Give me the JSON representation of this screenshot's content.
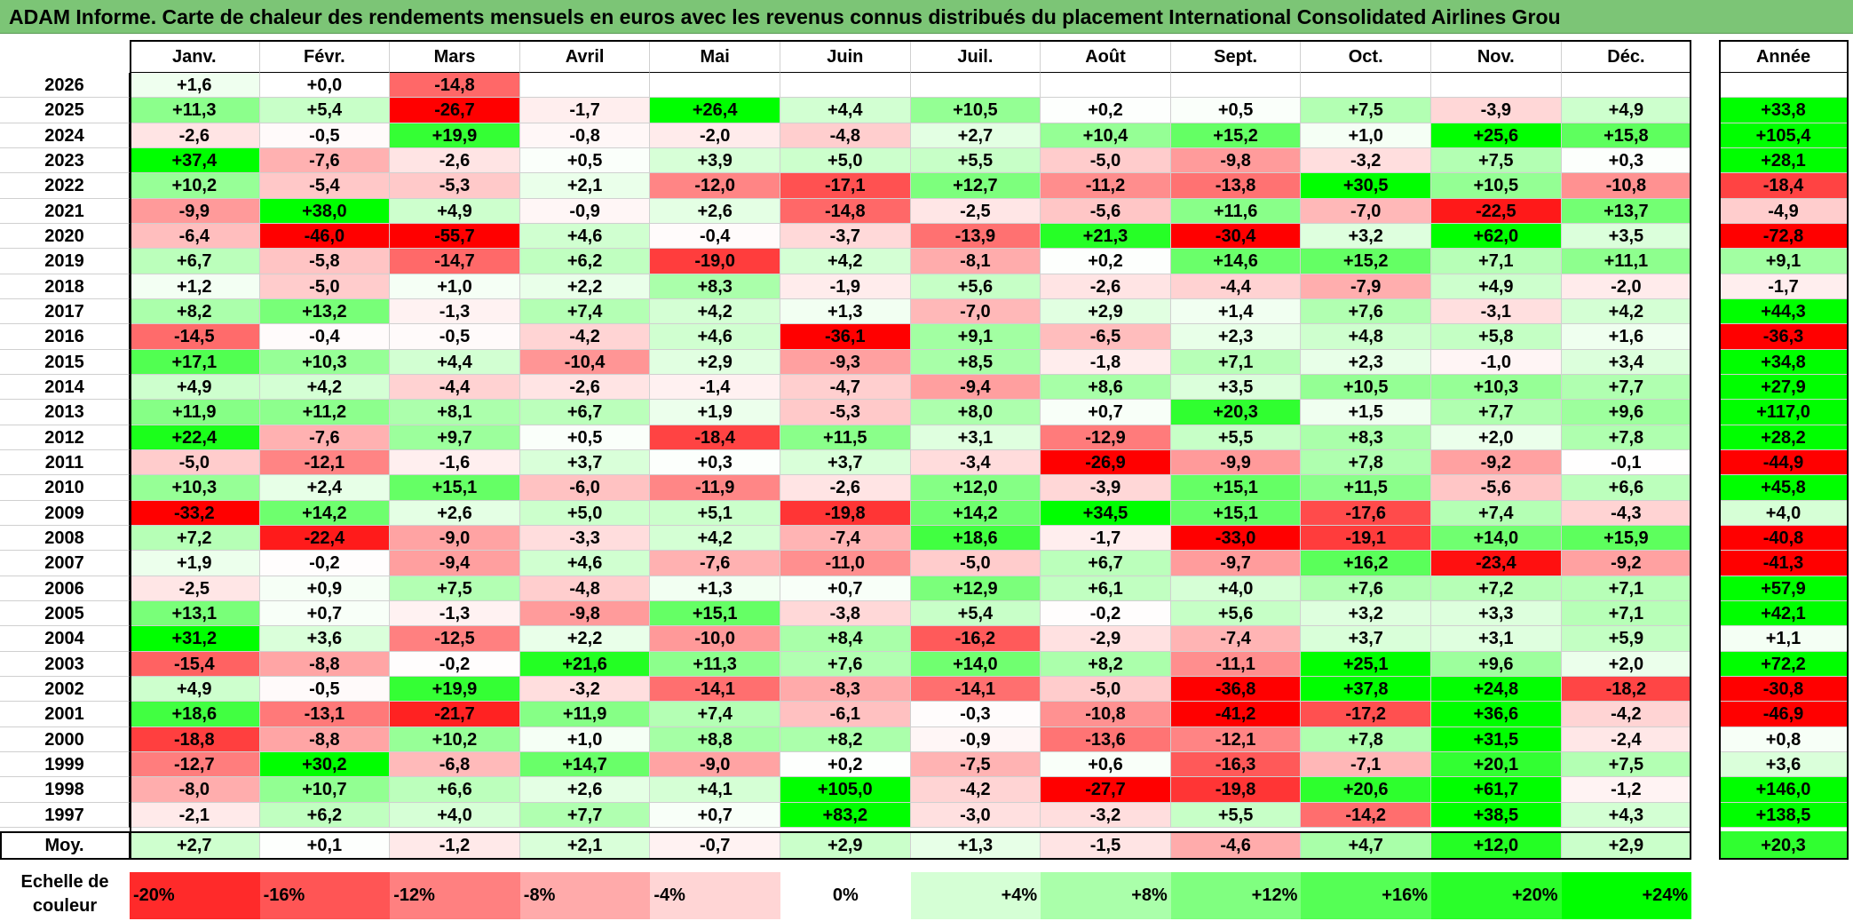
{
  "title": "ADAM Informe. Carte de chaleur des rendements mensuels en euros avec les revenus connus distribués du placement International Consolidated Airlines Grou",
  "colors": {
    "neg_max": "#ff0000",
    "neutral": "#ffffff",
    "pos_max": "#00ff00",
    "title_bg": "#7cc576"
  },
  "chart_data": {
    "type": "heatmap",
    "title": "ADAM Informe. Carte de chaleur des rendements mensuels en euros avec les revenus connus distribués du placement International Consolidated Airlines Grou",
    "columns": [
      "Janv.",
      "Févr.",
      "Mars",
      "Avril",
      "Mai",
      "Juin",
      "Juil.",
      "Août",
      "Sept.",
      "Oct.",
      "Nov.",
      "Déc."
    ],
    "year_header": "Année",
    "rows": [
      {
        "year": "2026",
        "values": [
          "+1,6",
          "+0,0",
          "-14,8",
          "",
          "",
          "",
          "",
          "",
          "",
          "",
          "",
          ""
        ],
        "annual": ""
      },
      {
        "year": "2025",
        "values": [
          "+11,3",
          "+5,4",
          "-26,7",
          "-1,7",
          "+26,4",
          "+4,4",
          "+10,5",
          "+0,2",
          "+0,5",
          "+7,5",
          "-3,9",
          "+4,9"
        ],
        "annual": "+33,8"
      },
      {
        "year": "2024",
        "values": [
          "-2,6",
          "-0,5",
          "+19,9",
          "-0,8",
          "-2,0",
          "-4,8",
          "+2,7",
          "+10,4",
          "+15,2",
          "+1,0",
          "+25,6",
          "+15,8"
        ],
        "annual": "+105,4"
      },
      {
        "year": "2023",
        "values": [
          "+37,4",
          "-7,6",
          "-2,6",
          "+0,5",
          "+3,9",
          "+5,0",
          "+5,5",
          "-5,0",
          "-9,8",
          "-3,2",
          "+7,5",
          "+0,3"
        ],
        "annual": "+28,1"
      },
      {
        "year": "2022",
        "values": [
          "+10,2",
          "-5,4",
          "-5,3",
          "+2,1",
          "-12,0",
          "-17,1",
          "+12,7",
          "-11,2",
          "-13,8",
          "+30,5",
          "+10,5",
          "-10,8"
        ],
        "annual": "-18,4"
      },
      {
        "year": "2021",
        "values": [
          "-9,9",
          "+38,0",
          "+4,9",
          "-0,9",
          "+2,6",
          "-14,8",
          "-2,5",
          "-5,6",
          "+11,6",
          "-7,0",
          "-22,5",
          "+13,7"
        ],
        "annual": "-4,9"
      },
      {
        "year": "2020",
        "values": [
          "-6,4",
          "-46,0",
          "-55,7",
          "+4,6",
          "-0,4",
          "-3,7",
          "-13,9",
          "+21,3",
          "-30,4",
          "+3,2",
          "+62,0",
          "+3,5"
        ],
        "annual": "-72,8"
      },
      {
        "year": "2019",
        "values": [
          "+6,7",
          "-5,8",
          "-14,7",
          "+6,2",
          "-19,0",
          "+4,2",
          "-8,1",
          "+0,2",
          "+14,6",
          "+15,2",
          "+7,1",
          "+11,1"
        ],
        "annual": "+9,1"
      },
      {
        "year": "2018",
        "values": [
          "+1,2",
          "-5,0",
          "+1,0",
          "+2,2",
          "+8,3",
          "-1,9",
          "+5,6",
          "-2,6",
          "-4,4",
          "-7,9",
          "+4,9",
          "-2,0"
        ],
        "annual": "-1,7"
      },
      {
        "year": "2017",
        "values": [
          "+8,2",
          "+13,2",
          "-1,3",
          "+7,4",
          "+4,2",
          "+1,3",
          "-7,0",
          "+2,9",
          "+1,4",
          "+7,6",
          "-3,1",
          "+4,2"
        ],
        "annual": "+44,3"
      },
      {
        "year": "2016",
        "values": [
          "-14,5",
          "-0,4",
          "-0,5",
          "-4,2",
          "+4,6",
          "-36,1",
          "+9,1",
          "-6,5",
          "+2,3",
          "+4,8",
          "+5,8",
          "+1,6"
        ],
        "annual": "-36,3"
      },
      {
        "year": "2015",
        "values": [
          "+17,1",
          "+10,3",
          "+4,4",
          "-10,4",
          "+2,9",
          "-9,3",
          "+8,5",
          "-1,8",
          "+7,1",
          "+2,3",
          "-1,0",
          "+3,4"
        ],
        "annual": "+34,8"
      },
      {
        "year": "2014",
        "values": [
          "+4,9",
          "+4,2",
          "-4,4",
          "-2,6",
          "-1,4",
          "-4,7",
          "-9,4",
          "+8,6",
          "+3,5",
          "+10,5",
          "+10,3",
          "+7,7"
        ],
        "annual": "+27,9"
      },
      {
        "year": "2013",
        "values": [
          "+11,9",
          "+11,2",
          "+8,1",
          "+6,7",
          "+1,9",
          "-5,3",
          "+8,0",
          "+0,7",
          "+20,3",
          "+1,5",
          "+7,7",
          "+9,6"
        ],
        "annual": "+117,0"
      },
      {
        "year": "2012",
        "values": [
          "+22,4",
          "-7,6",
          "+9,7",
          "+0,5",
          "-18,4",
          "+11,5",
          "+3,1",
          "-12,9",
          "+5,5",
          "+8,3",
          "+2,0",
          "+7,8"
        ],
        "annual": "+28,2"
      },
      {
        "year": "2011",
        "values": [
          "-5,0",
          "-12,1",
          "-1,6",
          "+3,7",
          "+0,3",
          "+3,7",
          "-3,4",
          "-26,9",
          "-9,9",
          "+7,8",
          "-9,2",
          "-0,1"
        ],
        "annual": "-44,9"
      },
      {
        "year": "2010",
        "values": [
          "+10,3",
          "+2,4",
          "+15,1",
          "-6,0",
          "-11,9",
          "-2,6",
          "+12,0",
          "-3,9",
          "+15,1",
          "+11,5",
          "-5,6",
          "+6,6"
        ],
        "annual": "+45,8"
      },
      {
        "year": "2009",
        "values": [
          "-33,2",
          "+14,2",
          "+2,6",
          "+5,0",
          "+5,1",
          "-19,8",
          "+14,2",
          "+34,5",
          "+15,1",
          "-17,6",
          "+7,4",
          "-4,3"
        ],
        "annual": "+4,0"
      },
      {
        "year": "2008",
        "values": [
          "+7,2",
          "-22,4",
          "-9,0",
          "-3,3",
          "+4,2",
          "-7,4",
          "+18,6",
          "-1,7",
          "-33,0",
          "-19,1",
          "+14,0",
          "+15,9"
        ],
        "annual": "-40,8"
      },
      {
        "year": "2007",
        "values": [
          "+1,9",
          "-0,2",
          "-9,4",
          "+4,6",
          "-7,6",
          "-11,0",
          "-5,0",
          "+6,7",
          "-9,7",
          "+16,2",
          "-23,4",
          "-9,2"
        ],
        "annual": "-41,3"
      },
      {
        "year": "2006",
        "values": [
          "-2,5",
          "+0,9",
          "+7,5",
          "-4,8",
          "+1,3",
          "+0,7",
          "+12,9",
          "+6,1",
          "+4,0",
          "+7,6",
          "+7,2",
          "+7,1"
        ],
        "annual": "+57,9"
      },
      {
        "year": "2005",
        "values": [
          "+13,1",
          "+0,7",
          "-1,3",
          "-9,8",
          "+15,1",
          "-3,8",
          "+5,4",
          "-0,2",
          "+5,6",
          "+3,2",
          "+3,3",
          "+7,1"
        ],
        "annual": "+42,1"
      },
      {
        "year": "2004",
        "values": [
          "+31,2",
          "+3,6",
          "-12,5",
          "+2,2",
          "-10,0",
          "+8,4",
          "-16,2",
          "-2,9",
          "-7,4",
          "+3,7",
          "+3,1",
          "+5,9"
        ],
        "annual": "+1,1"
      },
      {
        "year": "2003",
        "values": [
          "-15,4",
          "-8,8",
          "-0,2",
          "+21,6",
          "+11,3",
          "+7,6",
          "+14,0",
          "+8,2",
          "-11,1",
          "+25,1",
          "+9,6",
          "+2,0"
        ],
        "annual": "+72,2"
      },
      {
        "year": "2002",
        "values": [
          "+4,9",
          "-0,5",
          "+19,9",
          "-3,2",
          "-14,1",
          "-8,3",
          "-14,1",
          "-5,0",
          "-36,8",
          "+37,8",
          "+24,8",
          "-18,2"
        ],
        "annual": "-30,8"
      },
      {
        "year": "2001",
        "values": [
          "+18,6",
          "-13,1",
          "-21,7",
          "+11,9",
          "+7,4",
          "-6,1",
          "-0,3",
          "-10,8",
          "-41,2",
          "-17,2",
          "+36,6",
          "-4,2"
        ],
        "annual": "-46,9"
      },
      {
        "year": "2000",
        "values": [
          "-18,8",
          "-8,8",
          "+10,2",
          "+1,0",
          "+8,8",
          "+8,2",
          "-0,9",
          "-13,6",
          "-12,1",
          "+7,8",
          "+31,5",
          "-2,4"
        ],
        "annual": "+0,8"
      },
      {
        "year": "1999",
        "values": [
          "-12,7",
          "+30,2",
          "-6,8",
          "+14,7",
          "-9,0",
          "+0,2",
          "-7,5",
          "+0,6",
          "-16,3",
          "-7,1",
          "+20,1",
          "+7,5"
        ],
        "annual": "+3,6"
      },
      {
        "year": "1998",
        "values": [
          "-8,0",
          "+10,7",
          "+6,6",
          "+2,6",
          "+4,1",
          "+105,0",
          "-4,2",
          "-27,7",
          "-19,8",
          "+20,6",
          "+61,7",
          "-1,2"
        ],
        "annual": "+146,0"
      },
      {
        "year": "1997",
        "values": [
          "-2,1",
          "+6,2",
          "+4,0",
          "+7,7",
          "+0,7",
          "+83,2",
          "-3,0",
          "-3,2",
          "+5,5",
          "-14,2",
          "+38,5",
          "+4,3"
        ],
        "annual": "+138,5"
      }
    ],
    "average": {
      "label": "Moy.",
      "values": [
        "+2,7",
        "+0,1",
        "-1,2",
        "+2,1",
        "-0,7",
        "+2,9",
        "+1,3",
        "-1,5",
        "-4,6",
        "+4,7",
        "+12,0",
        "+2,9"
      ],
      "annual": "+20,3"
    },
    "color_scale": {
      "label": "Echelle de couleur",
      "steps": [
        "-20%",
        "-16%",
        "-12%",
        "-8%",
        "-4%",
        "0%",
        "+4%",
        "+8%",
        "+12%",
        "+16%",
        "+20%",
        "+24%"
      ]
    }
  }
}
